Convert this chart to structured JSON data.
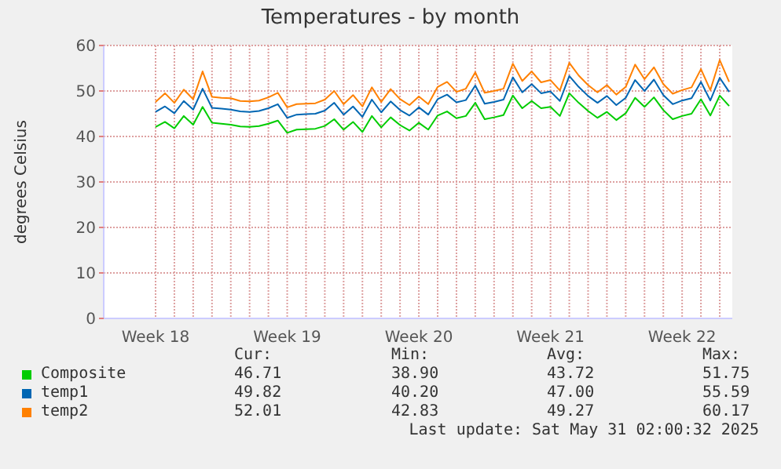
{
  "chart_data": {
    "type": "line",
    "title": "Temperatures - by month",
    "ylabel": "degrees Celsius",
    "categories": [
      "Week 18",
      null,
      null,
      null,
      null,
      null,
      null,
      null,
      null,
      null,
      null,
      null,
      null,
      null,
      "Week 19",
      null,
      null,
      null,
      null,
      null,
      null,
      null,
      null,
      null,
      null,
      null,
      null,
      null,
      "Week 20",
      null,
      null,
      null,
      null,
      null,
      null,
      null,
      null,
      null,
      null,
      null,
      null,
      null,
      "Week 21",
      null,
      null,
      null,
      null,
      null,
      null,
      null,
      null,
      null,
      null,
      null,
      null,
      null,
      "Week 22",
      null,
      null,
      null,
      null,
      null
    ],
    "series": [
      {
        "name": "Composite",
        "color": "#00cc00",
        "values": [
          42.1,
          43.2,
          41.8,
          44.5,
          42.6,
          46.5,
          43.0,
          42.8,
          42.6,
          42.2,
          42.1,
          42.3,
          42.8,
          43.5,
          40.8,
          41.5,
          41.6,
          41.7,
          42.3,
          43.8,
          41.5,
          43.2,
          41.0,
          44.5,
          42.0,
          44.2,
          42.5,
          41.3,
          43.0,
          41.5,
          44.6,
          45.5,
          44.0,
          44.5,
          47.4,
          43.8,
          44.2,
          44.7,
          49.0,
          46.2,
          47.8,
          46.2,
          46.5,
          44.5,
          49.5,
          47.4,
          45.6,
          44.1,
          45.4,
          43.6,
          45.1,
          48.5,
          46.5,
          48.6,
          45.8,
          43.8,
          44.5,
          45.0,
          48.2,
          44.6,
          49.0,
          46.7
        ]
      },
      {
        "name": "temp1",
        "color": "#0066b3",
        "values": [
          45.4,
          46.6,
          45.1,
          47.8,
          45.9,
          50.5,
          46.3,
          46.1,
          45.9,
          45.5,
          45.4,
          45.6,
          46.2,
          47.1,
          44.1,
          44.8,
          44.9,
          45.0,
          45.7,
          47.4,
          44.8,
          46.6,
          44.3,
          48.1,
          45.3,
          47.7,
          45.8,
          44.6,
          46.4,
          44.8,
          48.2,
          49.2,
          47.5,
          48.0,
          51.2,
          47.2,
          47.6,
          48.1,
          53.0,
          49.7,
          51.5,
          49.5,
          49.9,
          47.8,
          53.3,
          50.9,
          48.9,
          47.4,
          48.9,
          46.9,
          48.5,
          52.4,
          50.0,
          52.5,
          49.1,
          47.1,
          47.9,
          48.4,
          52.0,
          47.9,
          52.9,
          49.8
        ]
      },
      {
        "name": "temp2",
        "color": "#ff8000",
        "values": [
          47.6,
          49.5,
          47.4,
          50.3,
          48.2,
          54.3,
          48.7,
          48.5,
          48.4,
          47.8,
          47.7,
          47.9,
          48.6,
          49.6,
          46.4,
          47.1,
          47.2,
          47.3,
          48.1,
          50.0,
          47.1,
          49.1,
          46.6,
          50.8,
          47.6,
          50.4,
          48.2,
          46.9,
          48.8,
          47.1,
          50.9,
          52.0,
          49.8,
          50.5,
          54.1,
          49.6,
          50.0,
          50.5,
          56.0,
          52.2,
          54.3,
          51.9,
          52.4,
          50.1,
          56.2,
          53.4,
          51.3,
          49.7,
          51.3,
          49.2,
          50.9,
          55.8,
          52.6,
          55.2,
          51.5,
          49.4,
          50.2,
          50.8,
          54.8,
          50.2,
          56.8,
          52.0
        ]
      }
    ],
    "ylim": [
      0,
      60
    ],
    "yticks": [
      0,
      10,
      20,
      30,
      40,
      50,
      60
    ],
    "grid": true,
    "legend": "bottom",
    "marker": "none",
    "line_style": "solid",
    "annotations": [
      "Cur:",
      "Min:",
      "Avg:",
      "Max:",
      "46.71",
      "38.90",
      "43.72",
      "51.75",
      "49.82",
      "40.20",
      "47.00",
      "55.59",
      "52.01",
      "42.83",
      "49.27",
      "60.17",
      "Last update: Sat May 31 02:00:32 2025"
    ]
  }
}
